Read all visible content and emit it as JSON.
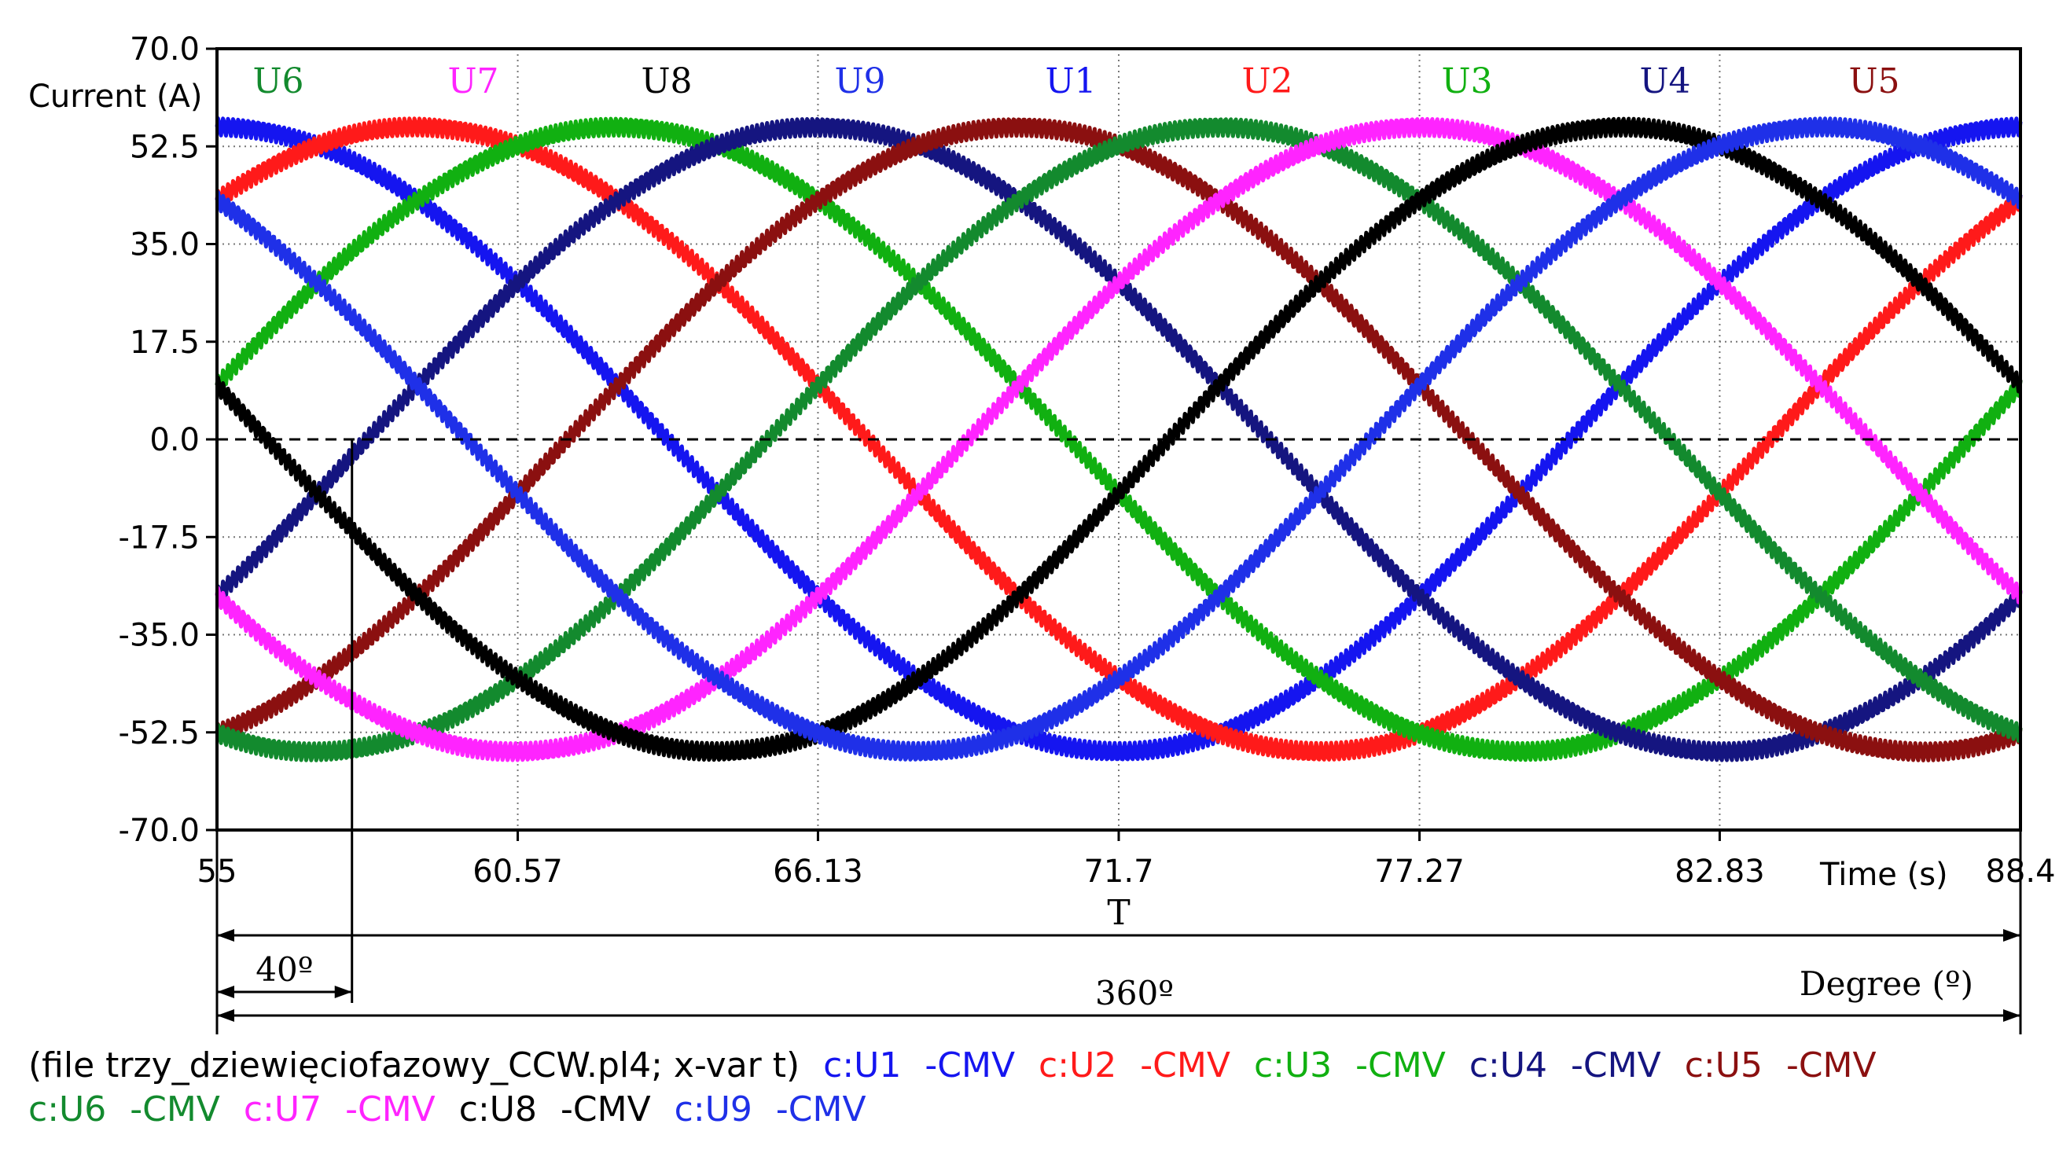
{
  "chart_data": {
    "type": "line",
    "ylabel": "Current (A)",
    "xlabel": "Time (s)",
    "ylim": [
      -70,
      70
    ],
    "xlim": [
      55,
      88.4
    ],
    "y_ticks": [
      "70.0",
      "52.5",
      "35.0",
      "17.5",
      "0.0",
      "-17.5",
      "-35.0",
      "-52.5",
      "-70.0"
    ],
    "x_ticks": [
      "55",
      "60.57",
      "66.13",
      "71.7",
      "77.27",
      "82.83",
      "88.4"
    ],
    "amplitude": 56,
    "period_s": 33.4,
    "series": [
      {
        "name": "U1",
        "color": "#1515f0",
        "phase_deg": 0
      },
      {
        "name": "U2",
        "color": "#ff1a1a",
        "phase_deg": 40
      },
      {
        "name": "U3",
        "color": "#11b011",
        "phase_deg": 80
      },
      {
        "name": "U4",
        "color": "#151580",
        "phase_deg": 120
      },
      {
        "name": "U5",
        "color": "#8b1010",
        "phase_deg": 160
      },
      {
        "name": "U6",
        "color": "#138a2e",
        "phase_deg": 200
      },
      {
        "name": "U7",
        "color": "#ff24ff",
        "phase_deg": 240
      },
      {
        "name": "U8",
        "color": "#000000",
        "phase_deg": 280
      },
      {
        "name": "U9",
        "color": "#1f30e8",
        "phase_deg": 320
      }
    ],
    "top_labels_order": [
      "U6",
      "U7",
      "U8",
      "U9",
      "U1",
      "U2",
      "U3",
      "U4",
      "U5"
    ],
    "annotations": {
      "period": "T",
      "angle": "40º",
      "full_angle": "360º",
      "degree_axis": "Degree (º)"
    }
  },
  "legend": {
    "line1_prefix": "(file trzy_dziewięciofazowy_CCW.pl4; x-var t)",
    "line1": [
      {
        "text": "c:U1",
        "color": "#1515f0"
      },
      {
        "text": "-CMV",
        "color": "#1515f0"
      },
      {
        "text": "c:U2",
        "color": "#ff1a1a"
      },
      {
        "text": "-CMV",
        "color": "#ff1a1a"
      },
      {
        "text": "c:U3",
        "color": "#11b011"
      },
      {
        "text": "-CMV",
        "color": "#11b011"
      },
      {
        "text": "c:U4",
        "color": "#151580"
      },
      {
        "text": "-CMV",
        "color": "#151580"
      },
      {
        "text": "c:U5",
        "color": "#8b1010"
      },
      {
        "text": "-CMV",
        "color": "#8b1010"
      }
    ],
    "line2": [
      {
        "text": "c:U6",
        "color": "#138a2e"
      },
      {
        "text": "-CMV",
        "color": "#138a2e"
      },
      {
        "text": "c:U7",
        "color": "#ff24ff"
      },
      {
        "text": "-CMV",
        "color": "#ff24ff"
      },
      {
        "text": "c:U8",
        "color": "#000000"
      },
      {
        "text": "-CMV",
        "color": "#000000"
      },
      {
        "text": "c:U9",
        "color": "#1f30e8"
      },
      {
        "text": "-CMV",
        "color": "#1f30e8"
      }
    ]
  }
}
